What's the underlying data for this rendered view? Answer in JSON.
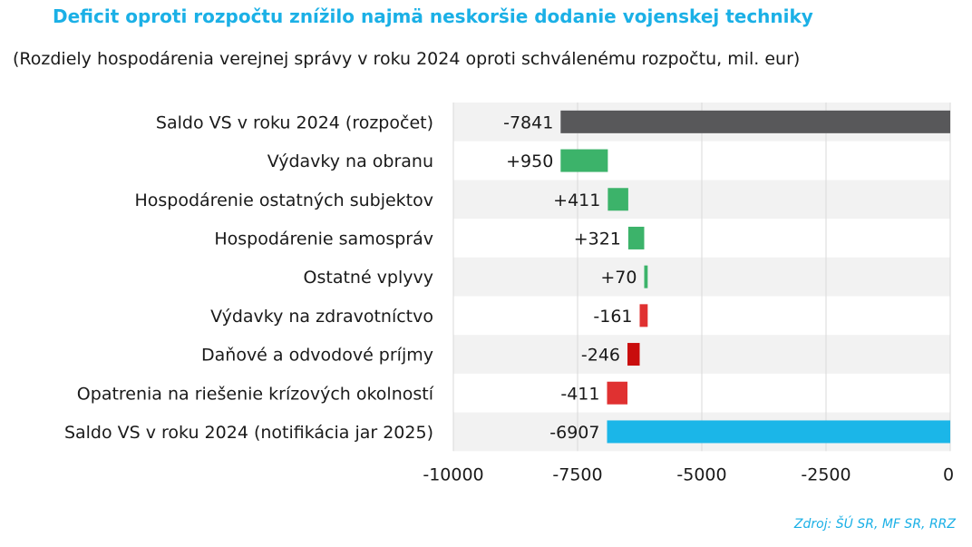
{
  "chart_data": {
    "type": "bar",
    "subtype": "waterfall",
    "orientation": "horizontal",
    "title": "Deficit oproti rozpočtu znížilo najmä neskoršie dodanie vojenskej techniky",
    "subtitle": "(Rozdiely hospodárenia verejnej správy v roku 2024 oproti schválenému rozpočtu, mil. eur)",
    "categories": [
      "Saldo VS v roku 2024 (rozpočet)",
      "Výdavky na obranu",
      "Hospodárenie ostatných subjektov",
      "Hospodárenie samospráv",
      "Ostatné vplyvy",
      "Výdavky na zdravotníctvo",
      "Daňové a odvodové príjmy",
      "Opatrenia na riešenie krízových okolností",
      "Saldo VS v roku 2024 (notifikácia jar 2025)"
    ],
    "values": [
      -7841,
      950,
      411,
      321,
      70,
      -161,
      -246,
      -411,
      -6907
    ],
    "labels": [
      "-7841",
      "+950",
      "+411",
      "+321",
      "+70",
      "-161",
      "-246",
      "-411",
      "-6907"
    ],
    "kinds": [
      "total",
      "delta",
      "delta",
      "delta",
      "delta",
      "delta",
      "delta",
      "delta",
      "total"
    ],
    "colors": [
      "#58585a",
      "#3cb36a",
      "#3cb36a",
      "#3cb36a",
      "#3cb36a",
      "#e03131",
      "#c90d0d",
      "#e03131",
      "#1bb6e8"
    ],
    "xlim": [
      -10000,
      0
    ],
    "xticks": [
      -10000,
      -7500,
      -5000,
      -2500,
      0
    ],
    "xtick_labels": [
      "-10000",
      "-7500",
      "-5000",
      "-2500",
      "0"
    ],
    "xlabel": "",
    "ylabel": "",
    "grid": true
  },
  "source": "Zdroj: ŠÚ SR, MF SR, RRZ"
}
